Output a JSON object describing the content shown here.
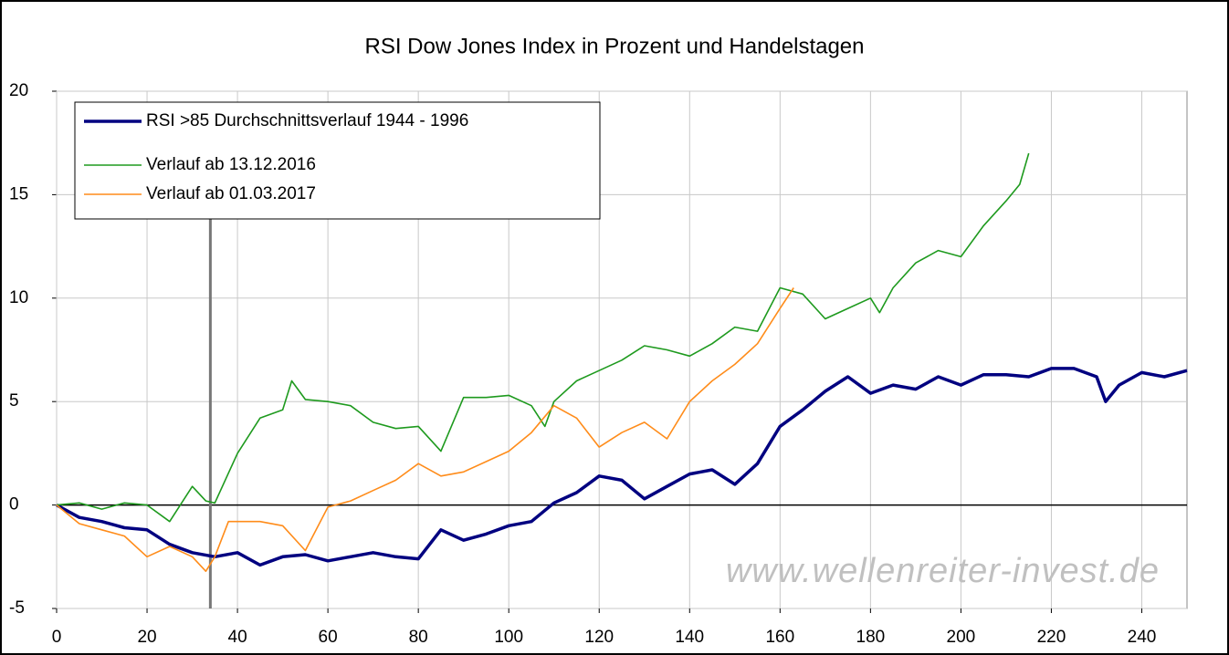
{
  "chart_data": {
    "type": "line",
    "title": "RSI Dow Jones Index in Prozent und Handelstagen",
    "annotation": "www.wellenreiter-invest.de",
    "xlim": [
      0,
      250
    ],
    "ylim": [
      -5,
      20
    ],
    "xticks": [
      0,
      20,
      40,
      60,
      80,
      100,
      120,
      140,
      160,
      180,
      200,
      220,
      240
    ],
    "yticks": [
      -5,
      0,
      5,
      10,
      15,
      20
    ],
    "grid": true,
    "legend": "upper left",
    "vertical_line_x": 34,
    "series": [
      {
        "name": "RSI >85 Durchschnittsverlauf 1944 - 1996",
        "color": "#000080",
        "x": [
          0,
          5,
          10,
          15,
          20,
          25,
          30,
          35,
          40,
          45,
          50,
          55,
          60,
          65,
          70,
          75,
          80,
          85,
          90,
          95,
          100,
          105,
          110,
          115,
          120,
          125,
          130,
          135,
          140,
          145,
          150,
          155,
          160,
          165,
          170,
          175,
          180,
          185,
          190,
          195,
          200,
          205,
          210,
          215,
          220,
          225,
          230,
          232,
          235,
          240,
          245,
          250
        ],
        "values": [
          0,
          -0.6,
          -0.8,
          -1.1,
          -1.2,
          -1.9,
          -2.3,
          -2.5,
          -2.3,
          -2.9,
          -2.5,
          -2.4,
          -2.7,
          -2.5,
          -2.3,
          -2.5,
          -2.6,
          -1.2,
          -1.7,
          -1.4,
          -1.0,
          -0.8,
          0.1,
          0.6,
          1.4,
          1.2,
          0.3,
          0.9,
          1.5,
          1.7,
          1.0,
          2.0,
          3.8,
          4.6,
          5.5,
          6.2,
          5.4,
          5.8,
          5.6,
          6.2,
          5.8,
          6.3,
          6.3,
          6.2,
          6.6,
          6.6,
          6.2,
          5.0,
          5.8,
          6.4,
          6.2,
          6.5
        ]
      },
      {
        "name": "Verlauf ab 13.12.2016",
        "color": "#1e9a1e",
        "x": [
          0,
          5,
          10,
          15,
          20,
          25,
          30,
          33,
          35,
          40,
          45,
          50,
          52,
          55,
          60,
          65,
          70,
          75,
          80,
          85,
          90,
          95,
          100,
          105,
          108,
          110,
          115,
          120,
          125,
          130,
          135,
          140,
          145,
          150,
          155,
          160,
          165,
          170,
          175,
          180,
          182,
          185,
          190,
          195,
          200,
          205,
          210,
          213,
          215
        ],
        "values": [
          0,
          0.1,
          -0.2,
          0.1,
          0,
          -0.8,
          0.9,
          0.2,
          0.1,
          2.5,
          4.2,
          4.6,
          6.0,
          5.1,
          5.0,
          4.8,
          4.0,
          3.7,
          3.8,
          2.6,
          5.2,
          5.2,
          5.3,
          4.8,
          3.8,
          5.0,
          6.0,
          6.5,
          7.0,
          7.7,
          7.5,
          7.2,
          7.8,
          8.6,
          8.4,
          10.5,
          10.2,
          9.0,
          9.5,
          10.0,
          9.3,
          10.5,
          11.7,
          12.3,
          12.0,
          13.5,
          14.7,
          15.5,
          17.0
        ]
      },
      {
        "name": "Verlauf ab 01.03.2017",
        "color": "#ff8c1a",
        "x": [
          0,
          5,
          10,
          15,
          20,
          25,
          30,
          33,
          35,
          38,
          45,
          50,
          55,
          60,
          65,
          70,
          75,
          80,
          85,
          90,
          95,
          100,
          105,
          110,
          115,
          120,
          125,
          130,
          135,
          140,
          145,
          150,
          155,
          160,
          163
        ],
        "values": [
          0,
          -0.9,
          -1.2,
          -1.5,
          -2.5,
          -2.0,
          -2.5,
          -3.2,
          -2.5,
          -0.8,
          -0.8,
          -1.0,
          -2.2,
          -0.1,
          0.2,
          0.7,
          1.2,
          2.0,
          1.4,
          1.6,
          2.1,
          2.6,
          3.5,
          4.8,
          4.2,
          2.8,
          3.5,
          4.0,
          3.2,
          5.0,
          6.0,
          6.8,
          7.8,
          9.5,
          10.5
        ]
      }
    ]
  }
}
